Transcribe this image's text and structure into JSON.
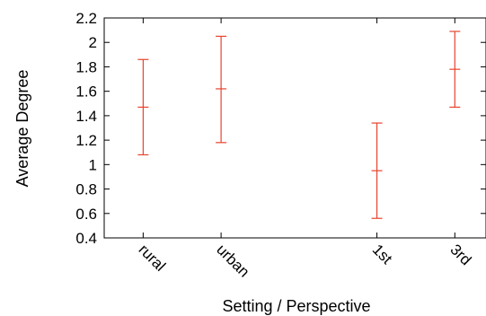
{
  "chart_data": {
    "type": "errorbar",
    "xlabel": "Setting  /  Perspective",
    "ylabel": "Average Degree",
    "ylim": [
      0.4,
      2.2
    ],
    "yticks": [
      "0.4",
      "0.6",
      "0.8",
      "1",
      "1.2",
      "1.4",
      "1.6",
      "1.8",
      "2",
      "2.2"
    ],
    "categories": [
      "rural",
      "urban",
      "1st",
      "3rd"
    ],
    "category_positions": [
      1,
      2,
      4,
      5
    ],
    "xlim": [
      0.5,
      5.4
    ],
    "points": [
      {
        "category": "rural",
        "mean": 1.47,
        "low": 1.08,
        "high": 1.86
      },
      {
        "category": "urban",
        "mean": 1.62,
        "low": 1.18,
        "high": 2.05
      },
      {
        "category": "1st",
        "mean": 0.95,
        "low": 0.56,
        "high": 1.34
      },
      {
        "category": "3rd",
        "mean": 1.78,
        "low": 1.47,
        "high": 2.09
      }
    ],
    "color": "#e8432d",
    "grid": false,
    "legend": "none"
  }
}
